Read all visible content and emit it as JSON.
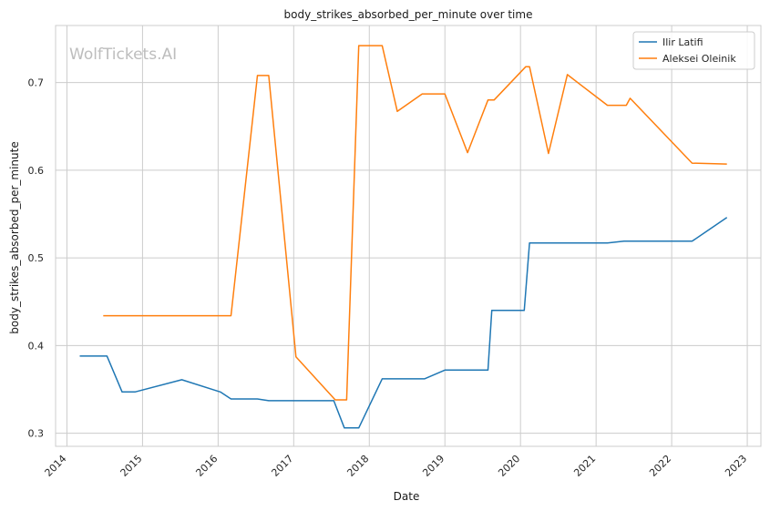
{
  "chart_data": {
    "type": "line",
    "title": "body_strikes_absorbed_per_minute over time",
    "xlabel": "Date",
    "ylabel": "body_strikes_absorbed_per_minute",
    "watermark": "WolfTickets.AI",
    "xlim": [
      2013.85,
      2023.18
    ],
    "ylim": [
      0.285,
      0.765
    ],
    "x_ticks": [
      2014,
      2015,
      2016,
      2017,
      2018,
      2019,
      2020,
      2021,
      2022,
      2023
    ],
    "y_ticks": [
      0.3,
      0.4,
      0.5,
      0.6,
      0.7
    ],
    "y_tick_labels": [
      "0.3",
      "0.4",
      "0.5",
      "0.6",
      "0.7"
    ],
    "grid": true,
    "legend_position": "top-right",
    "series": [
      {
        "name": "Ilir Latifi",
        "color": "#1f77b4",
        "points": [
          [
            2014.17,
            0.388
          ],
          [
            2014.53,
            0.388
          ],
          [
            2014.73,
            0.347
          ],
          [
            2014.9,
            0.347
          ],
          [
            2015.52,
            0.361
          ],
          [
            2016.03,
            0.347
          ],
          [
            2016.17,
            0.339
          ],
          [
            2016.52,
            0.339
          ],
          [
            2016.67,
            0.337
          ],
          [
            2017.53,
            0.337
          ],
          [
            2017.67,
            0.306
          ],
          [
            2017.86,
            0.306
          ],
          [
            2018.17,
            0.362
          ],
          [
            2018.73,
            0.362
          ],
          [
            2019.0,
            0.372
          ],
          [
            2019.57,
            0.372
          ],
          [
            2019.62,
            0.44
          ],
          [
            2020.05,
            0.44
          ],
          [
            2020.12,
            0.517
          ],
          [
            2021.15,
            0.517
          ],
          [
            2021.37,
            0.519
          ],
          [
            2022.27,
            0.519
          ],
          [
            2022.73,
            0.546
          ]
        ]
      },
      {
        "name": "Aleksei Oleinik",
        "color": "#ff7f0e",
        "points": [
          [
            2014.48,
            0.434
          ],
          [
            2016.17,
            0.434
          ],
          [
            2016.52,
            0.708
          ],
          [
            2016.67,
            0.708
          ],
          [
            2017.03,
            0.387
          ],
          [
            2017.55,
            0.338
          ],
          [
            2017.7,
            0.338
          ],
          [
            2017.86,
            0.742
          ],
          [
            2018.17,
            0.742
          ],
          [
            2018.37,
            0.667
          ],
          [
            2018.7,
            0.687
          ],
          [
            2019.0,
            0.687
          ],
          [
            2019.3,
            0.62
          ],
          [
            2019.57,
            0.68
          ],
          [
            2019.65,
            0.68
          ],
          [
            2020.07,
            0.718
          ],
          [
            2020.12,
            0.718
          ],
          [
            2020.37,
            0.619
          ],
          [
            2020.62,
            0.709
          ],
          [
            2021.15,
            0.674
          ],
          [
            2021.4,
            0.674
          ],
          [
            2021.45,
            0.682
          ],
          [
            2022.27,
            0.608
          ],
          [
            2022.73,
            0.607
          ]
        ]
      }
    ]
  }
}
